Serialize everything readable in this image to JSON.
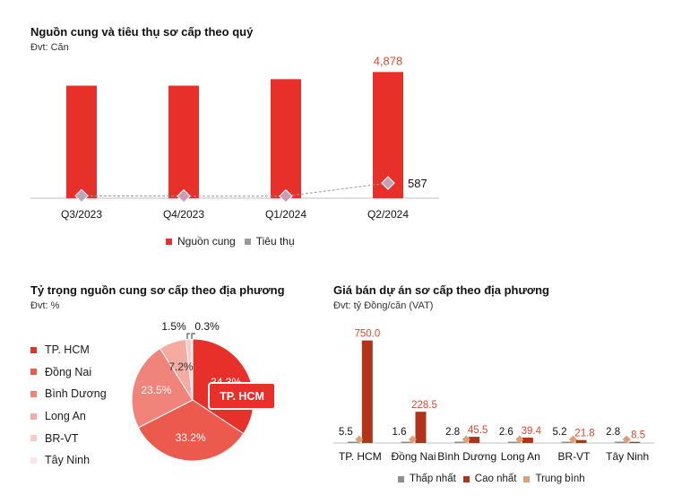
{
  "colors": {
    "supply": "#e8302a",
    "consumption": "#c3a0b4",
    "low": "#8e8e8e",
    "high": "#b0331a",
    "avg": "#d9a07a",
    "value_red": "#d94a2a"
  },
  "chart_data": [
    {
      "id": "supply",
      "type": "bar",
      "title": "Nguồn cung và tiêu thụ sơ cấp theo quý",
      "unit": "Đvt: Căn",
      "categories": [
        "Q3/2023",
        "Q4/2023",
        "Q1/2024",
        "Q2/2024"
      ],
      "series": [
        {
          "name": "Nguồn cung",
          "type": "bar",
          "values": [
            4350,
            4350,
            4600,
            4878
          ]
        },
        {
          "name": "Tiêu thụ",
          "type": "line",
          "values": [
            90,
            80,
            80,
            587
          ]
        }
      ],
      "labels": {
        "supply_last": "4,878",
        "consumption_last": "587"
      },
      "ylim": [
        0,
        5200
      ],
      "legend": "bottom"
    },
    {
      "id": "share",
      "type": "pie",
      "title": "Tỷ trọng nguồn cung sơ cấp theo địa phương",
      "unit": "Đvt: %",
      "slices": [
        {
          "name": "TP. HCM",
          "value": 34.3,
          "label": "34.3%",
          "color": "#e8302a"
        },
        {
          "name": "Đồng Nai",
          "value": 33.2,
          "label": "33.2%",
          "color": "#ec5a4e"
        },
        {
          "name": "Bình Dương",
          "value": 23.5,
          "label": "23.5%",
          "color": "#f0847a"
        },
        {
          "name": "Long An",
          "value": 7.2,
          "label": "7.2%",
          "color": "#f5aaa2"
        },
        {
          "name": "BR-VT",
          "value": 1.5,
          "label": "1.5%",
          "color": "#f8cbc6"
        },
        {
          "name": "Tây Ninh",
          "value": 0.3,
          "label": "0.3%",
          "color": "#fbe4e1"
        }
      ],
      "callout": "TP. HCM",
      "legend": "left"
    },
    {
      "id": "price",
      "type": "bar",
      "title": "Giá bán dự án sơ cấp theo địa phương",
      "unit": "Đvt: tỷ Đồng/căn (VAT)",
      "categories": [
        "TP. HCM",
        "Đồng Nai",
        "Bình Dương",
        "Long An",
        "BR-VT",
        "Tây Ninh"
      ],
      "series": [
        {
          "name": "Thấp nhất",
          "values": [
            5.5,
            1.6,
            2.8,
            2.6,
            5.2,
            2.8
          ],
          "labels": [
            "5.5",
            "1.6",
            "2.8",
            "2.6",
            "5.2",
            "2.8"
          ]
        },
        {
          "name": "Cao nhất",
          "values": [
            750.0,
            228.5,
            45.5,
            39.4,
            21.8,
            8.5
          ],
          "labels": [
            "750.0",
            "228.5",
            "45.5",
            "39.4",
            "21.8",
            "8.5"
          ]
        },
        {
          "name": "Trung bình",
          "values": [
            8,
            8,
            7,
            7,
            6,
            5
          ]
        }
      ],
      "ylim": [
        0,
        800
      ],
      "legend": "bottom"
    }
  ]
}
